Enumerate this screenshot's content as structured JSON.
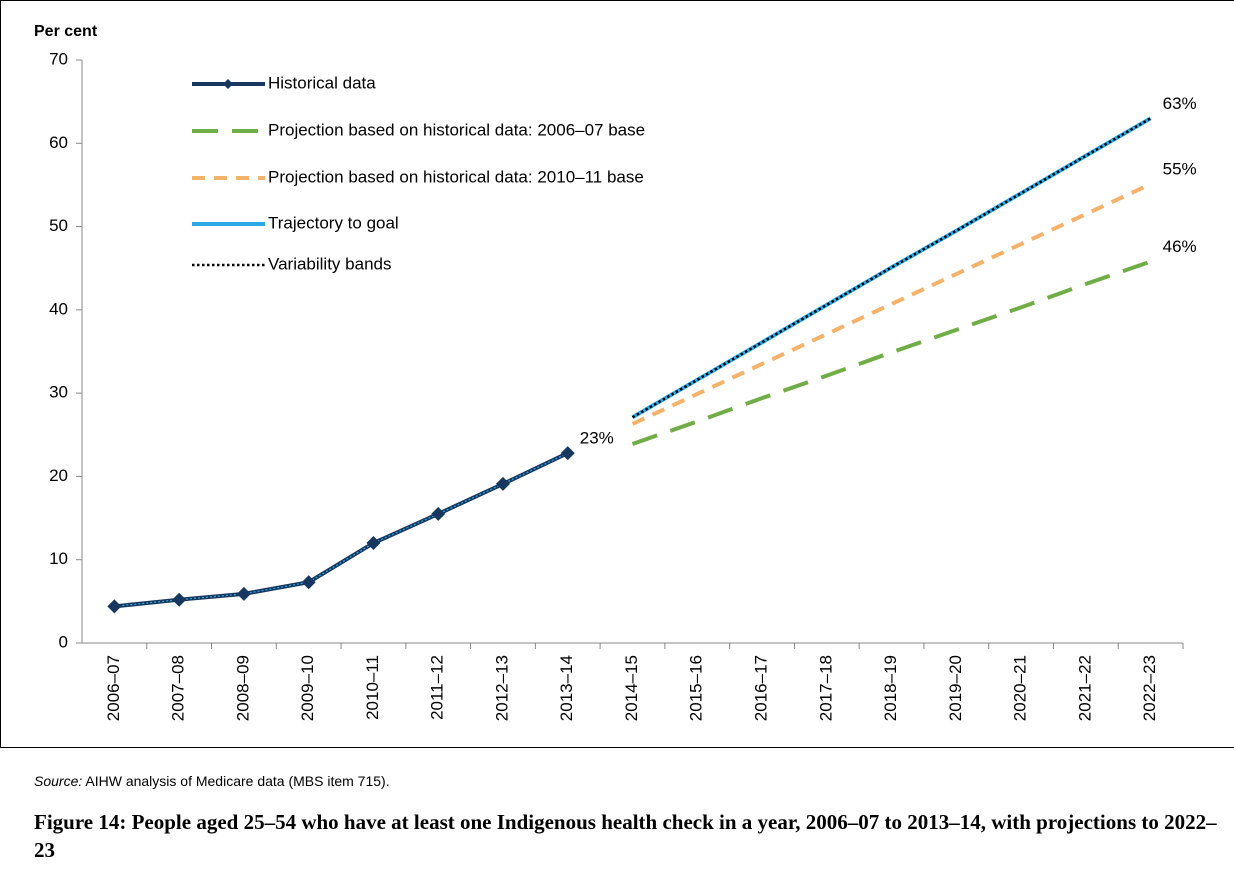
{
  "chart_data": {
    "type": "line",
    "y_label": "Per cent",
    "categories": [
      "2006–07",
      "2007–08",
      "2008–09",
      "2009–10",
      "2010–11",
      "2011–12",
      "2012–13",
      "2013–14",
      "2014–15",
      "2015–16",
      "2016–17",
      "2017–18",
      "2018–19",
      "2019–20",
      "2020–21",
      "2021–22",
      "2022–23"
    ],
    "ylim": [
      0,
      70
    ],
    "yticks": [
      0,
      10,
      20,
      30,
      40,
      50,
      60,
      70
    ],
    "grid": false,
    "legend": "top-left",
    "series": [
      {
        "name": "Historical data",
        "color": "#17375e",
        "line_style": "solid",
        "marker": "diamond",
        "values": [
          4.4,
          5.2,
          5.9,
          7.3,
          12.0,
          15.5,
          19.1,
          22.8,
          null,
          null,
          null,
          null,
          null,
          null,
          null,
          null,
          null
        ],
        "value_labels": [
          null,
          null,
          null,
          null,
          null,
          null,
          null,
          "23%",
          null,
          null,
          null,
          null,
          null,
          null,
          null,
          null,
          null
        ]
      },
      {
        "name": "Projection based on historical data: 2006–07 base",
        "color": "#70ad47",
        "line_style": "dashed",
        "marker": "none",
        "values": [
          null,
          null,
          null,
          null,
          null,
          null,
          null,
          null,
          23.9,
          26.6,
          29.4,
          32.1,
          34.9,
          37.6,
          40.3,
          43.1,
          45.8
        ],
        "value_labels": [
          null,
          null,
          null,
          null,
          null,
          null,
          null,
          null,
          null,
          null,
          null,
          null,
          null,
          null,
          null,
          null,
          "46%"
        ]
      },
      {
        "name": "Projection based on historical data: 2010–11 base",
        "color": "#f4b26b",
        "line_style": "short-dashed",
        "marker": "none",
        "values": [
          null,
          null,
          null,
          null,
          null,
          null,
          null,
          null,
          26.3,
          29.9,
          33.5,
          37.1,
          40.7,
          44.3,
          47.9,
          51.5,
          55.1
        ],
        "value_labels": [
          null,
          null,
          null,
          null,
          null,
          null,
          null,
          null,
          null,
          null,
          null,
          null,
          null,
          null,
          null,
          null,
          "55%"
        ]
      },
      {
        "name": "Trajectory to goal",
        "color": "#2aa9e8",
        "line_style": "solid",
        "marker": "none",
        "values": [
          null,
          null,
          null,
          null,
          null,
          null,
          null,
          null,
          27.1,
          31.6,
          36.1,
          40.6,
          45.1,
          49.5,
          54.0,
          58.5,
          63.0
        ],
        "value_labels": [
          null,
          null,
          null,
          null,
          null,
          null,
          null,
          null,
          null,
          null,
          null,
          null,
          null,
          null,
          null,
          null,
          "63%"
        ]
      },
      {
        "name": "Variability bands",
        "color": "#000000",
        "line_style": "dotted",
        "marker": "none",
        "values": [
          null,
          null,
          null,
          null,
          null,
          null,
          null,
          null,
          27.1,
          31.6,
          36.1,
          40.6,
          45.1,
          49.5,
          54.0,
          58.5,
          63.0
        ]
      }
    ]
  },
  "source_label": "Source:",
  "source": "AIHW analysis of Medicare data (MBS item 715).",
  "caption": "Figure 14: People aged 25–54 who have at least one Indigenous health check in a year, 2006–07 to 2013–14, with projections to 2022–23"
}
